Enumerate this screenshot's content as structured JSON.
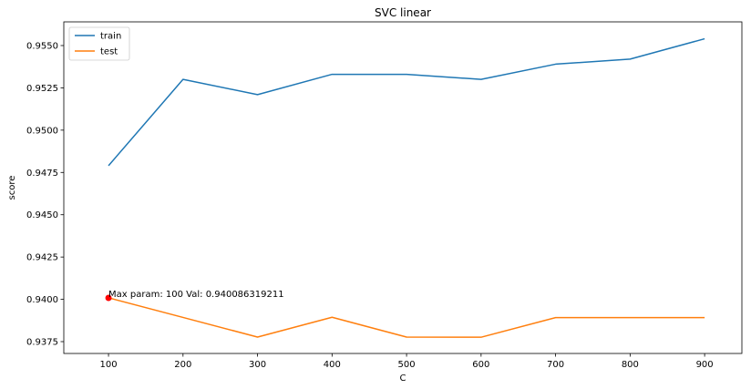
{
  "chart_data": {
    "type": "line",
    "title": "SVC linear",
    "xlabel": "C",
    "ylabel": "score",
    "x": [
      100,
      200,
      300,
      400,
      500,
      600,
      700,
      800,
      900
    ],
    "series": [
      {
        "name": "train",
        "color": "#1f77b4",
        "values": [
          0.9479,
          0.953,
          0.9521,
          0.9533,
          0.9533,
          0.953,
          0.9539,
          0.9542,
          0.9554
        ]
      },
      {
        "name": "test",
        "color": "#ff7f0e",
        "values": [
          0.94009,
          0.93893,
          0.93777,
          0.93894,
          0.93777,
          0.93776,
          0.93892,
          0.93892,
          0.93892
        ]
      }
    ],
    "xlim": [
      40,
      950
    ],
    "ylim": [
      0.9368,
      0.9564
    ],
    "xticks": [
      100,
      200,
      300,
      400,
      500,
      600,
      700,
      800,
      900
    ],
    "xtick_labels": [
      "100",
      "200",
      "300",
      "400",
      "500",
      "600",
      "700",
      "800",
      "900"
    ],
    "yticks": [
      0.9375,
      0.94,
      0.9425,
      0.945,
      0.9475,
      0.95,
      0.9525,
      0.955
    ],
    "ytick_labels": [
      "0.9375",
      "0.9400",
      "0.9425",
      "0.9450",
      "0.9475",
      "0.9500",
      "0.9525",
      "0.9550"
    ],
    "grid": false,
    "legend": {
      "placement": "top-left",
      "entries": [
        {
          "label": "train",
          "color": "#1f77b4"
        },
        {
          "label": "test",
          "color": "#ff7f0e"
        }
      ]
    },
    "annotation": {
      "text": "Max param: 100 Val: 0.940086319211",
      "x": 100,
      "y": 0.940086,
      "marker_color": "#ff0000"
    }
  }
}
